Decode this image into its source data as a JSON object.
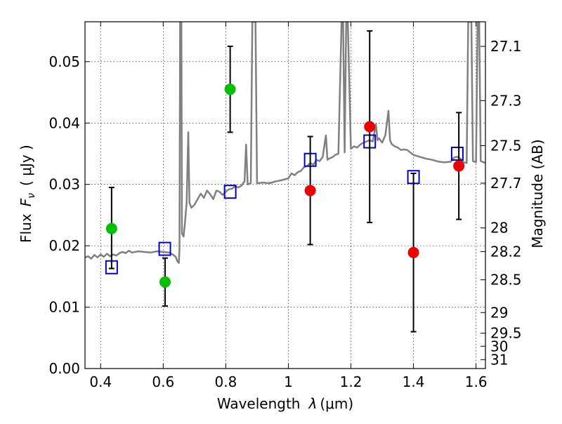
{
  "chart_data": {
    "type": "scatter",
    "title": "",
    "xlabel_prefix": "Wavelength",
    "xlabel_var": "λ",
    "xlabel_unit": "(μm)",
    "ylabel_prefix": "Flux",
    "ylabel_var": "F",
    "ylabel_sub": "ν",
    "ylabel_unit": "( μJy )",
    "y2label": "Magnitude (AB)",
    "xlim": [
      0.35,
      1.63
    ],
    "ylim": [
      0.0,
      0.0565
    ],
    "grid": true,
    "x_ticks": [
      {
        "v": 0.4,
        "label": "0.4"
      },
      {
        "v": 0.6,
        "label": "0.6"
      },
      {
        "v": 0.8,
        "label": "0.8"
      },
      {
        "v": 1.0,
        "label": "1"
      },
      {
        "v": 1.2,
        "label": "1.2"
      },
      {
        "v": 1.4,
        "label": "1.4"
      },
      {
        "v": 1.6,
        "label": "1.6"
      }
    ],
    "y_ticks": [
      {
        "v": 0.0,
        "label": "0.00"
      },
      {
        "v": 0.01,
        "label": "0.01"
      },
      {
        "v": 0.02,
        "label": "0.02"
      },
      {
        "v": 0.03,
        "label": "0.03"
      },
      {
        "v": 0.04,
        "label": "0.04"
      },
      {
        "v": 0.05,
        "label": "0.05"
      }
    ],
    "mag_ticks": [
      {
        "mag": 27.1,
        "label": "27.1"
      },
      {
        "mag": 27.3,
        "label": "27.3"
      },
      {
        "mag": 27.5,
        "label": "27.5"
      },
      {
        "mag": 27.7,
        "label": "27.7"
      },
      {
        "mag": 28.0,
        "label": "28"
      },
      {
        "mag": 28.2,
        "label": "28.2"
      },
      {
        "mag": 28.5,
        "label": "28.5"
      },
      {
        "mag": 29.0,
        "label": "29"
      },
      {
        "mag": 29.5,
        "label": "29.5"
      },
      {
        "mag": 30.0,
        "label": "30"
      },
      {
        "mag": 31.0,
        "label": "31"
      }
    ],
    "spectrum": {
      "name": "model spectrum",
      "color": "#808080",
      "points": [
        [
          0.35,
          0.0181
        ],
        [
          0.36,
          0.0183
        ],
        [
          0.37,
          0.0179
        ],
        [
          0.38,
          0.0185
        ],
        [
          0.39,
          0.0181
        ],
        [
          0.4,
          0.0186
        ],
        [
          0.41,
          0.0182
        ],
        [
          0.42,
          0.0187
        ],
        [
          0.43,
          0.0183
        ],
        [
          0.44,
          0.0186
        ],
        [
          0.45,
          0.0184
        ],
        [
          0.46,
          0.0188
        ],
        [
          0.47,
          0.019
        ],
        [
          0.48,
          0.0188
        ],
        [
          0.49,
          0.0192
        ],
        [
          0.5,
          0.0189
        ],
        [
          0.52,
          0.0191
        ],
        [
          0.54,
          0.019
        ],
        [
          0.56,
          0.0189
        ],
        [
          0.58,
          0.0191
        ],
        [
          0.6,
          0.019
        ],
        [
          0.62,
          0.0189
        ],
        [
          0.63,
          0.0186
        ],
        [
          0.64,
          0.0182
        ],
        [
          0.645,
          0.0175
        ],
        [
          0.65,
          0.0172
        ],
        [
          0.652,
          0.0195
        ],
        [
          0.654,
          0.0565
        ],
        [
          0.658,
          0.0565
        ],
        [
          0.66,
          0.022
        ],
        [
          0.665,
          0.0215
        ],
        [
          0.67,
          0.024
        ],
        [
          0.675,
          0.0271
        ],
        [
          0.68,
          0.0385
        ],
        [
          0.684,
          0.027
        ],
        [
          0.69,
          0.0262
        ],
        [
          0.7,
          0.0267
        ],
        [
          0.71,
          0.0276
        ],
        [
          0.72,
          0.0285
        ],
        [
          0.73,
          0.0278
        ],
        [
          0.74,
          0.029
        ],
        [
          0.75,
          0.0284
        ],
        [
          0.76,
          0.0276
        ],
        [
          0.77,
          0.029
        ],
        [
          0.78,
          0.0288
        ],
        [
          0.79,
          0.0283
        ],
        [
          0.8,
          0.0288
        ],
        [
          0.81,
          0.0292
        ],
        [
          0.82,
          0.0293
        ],
        [
          0.83,
          0.0297
        ],
        [
          0.84,
          0.0295
        ],
        [
          0.85,
          0.0298
        ],
        [
          0.86,
          0.0305
        ],
        [
          0.865,
          0.0365
        ],
        [
          0.87,
          0.03
        ],
        [
          0.88,
          0.0302
        ],
        [
          0.885,
          0.0565
        ],
        [
          0.895,
          0.0565
        ],
        [
          0.9,
          0.0302
        ],
        [
          0.92,
          0.0303
        ],
        [
          0.94,
          0.0302
        ],
        [
          0.96,
          0.0305
        ],
        [
          0.98,
          0.0307
        ],
        [
          1.0,
          0.031
        ],
        [
          1.01,
          0.0318
        ],
        [
          1.02,
          0.0315
        ],
        [
          1.03,
          0.032
        ],
        [
          1.04,
          0.0322
        ],
        [
          1.05,
          0.0328
        ],
        [
          1.06,
          0.033
        ],
        [
          1.07,
          0.0335
        ],
        [
          1.08,
          0.0332
        ],
        [
          1.09,
          0.034
        ],
        [
          1.1,
          0.0338
        ],
        [
          1.11,
          0.0345
        ],
        [
          1.12,
          0.038
        ],
        [
          1.125,
          0.034
        ],
        [
          1.13,
          0.0342
        ],
        [
          1.14,
          0.0344
        ],
        [
          1.15,
          0.0348
        ],
        [
          1.16,
          0.035
        ],
        [
          1.17,
          0.0565
        ],
        [
          1.175,
          0.0565
        ],
        [
          1.18,
          0.0352
        ],
        [
          1.185,
          0.0565
        ],
        [
          1.19,
          0.0565
        ],
        [
          1.2,
          0.0358
        ],
        [
          1.21,
          0.0362
        ],
        [
          1.22,
          0.036
        ],
        [
          1.23,
          0.0365
        ],
        [
          1.24,
          0.0368
        ],
        [
          1.25,
          0.037
        ],
        [
          1.26,
          0.0372
        ],
        [
          1.27,
          0.037
        ],
        [
          1.28,
          0.0398
        ],
        [
          1.285,
          0.0372
        ],
        [
          1.29,
          0.0375
        ],
        [
          1.3,
          0.0368
        ],
        [
          1.31,
          0.038
        ],
        [
          1.32,
          0.042
        ],
        [
          1.325,
          0.0372
        ],
        [
          1.33,
          0.0366
        ],
        [
          1.34,
          0.0362
        ],
        [
          1.35,
          0.036
        ],
        [
          1.36,
          0.0356
        ],
        [
          1.37,
          0.0357
        ],
        [
          1.38,
          0.0356
        ],
        [
          1.39,
          0.0352
        ],
        [
          1.4,
          0.0348
        ],
        [
          1.42,
          0.0345
        ],
        [
          1.44,
          0.0342
        ],
        [
          1.46,
          0.034
        ],
        [
          1.48,
          0.0337
        ],
        [
          1.5,
          0.0336
        ],
        [
          1.52,
          0.0337
        ],
        [
          1.53,
          0.0344
        ],
        [
          1.54,
          0.0345
        ],
        [
          1.55,
          0.0342
        ],
        [
          1.56,
          0.0336
        ],
        [
          1.57,
          0.0335
        ],
        [
          1.575,
          0.0565
        ],
        [
          1.585,
          0.0565
        ],
        [
          1.59,
          0.0338
        ],
        [
          1.6,
          0.0336
        ],
        [
          1.605,
          0.0565
        ],
        [
          1.61,
          0.0565
        ],
        [
          1.615,
          0.0338
        ],
        [
          1.63,
          0.0335
        ]
      ]
    },
    "series": [
      {
        "name": "model photometry",
        "marker": "open-square",
        "color": "#0000cc",
        "points": [
          {
            "x": 0.435,
            "y": 0.0165
          },
          {
            "x": 0.605,
            "y": 0.0195
          },
          {
            "x": 0.814,
            "y": 0.0288
          },
          {
            "x": 1.07,
            "y": 0.034
          },
          {
            "x": 1.26,
            "y": 0.037
          },
          {
            "x": 1.4,
            "y": 0.0312
          },
          {
            "x": 1.54,
            "y": 0.035
          }
        ]
      },
      {
        "name": "observed (green)",
        "marker": "filled-circle",
        "color": "#00c000",
        "points": [
          {
            "x": 0.435,
            "y": 0.0228,
            "err_lo": 0.0065,
            "err_hi": 0.0067
          },
          {
            "x": 0.606,
            "y": 0.0141,
            "err_lo": 0.0039,
            "err_hi": 0.0039
          },
          {
            "x": 0.814,
            "y": 0.0455,
            "err_lo": 0.007,
            "err_hi": 0.007
          }
        ]
      },
      {
        "name": "observed (red)",
        "marker": "filled-circle",
        "color": "#ee0000",
        "points": [
          {
            "x": 1.07,
            "y": 0.029,
            "err_lo": 0.0088,
            "err_hi": 0.0088
          },
          {
            "x": 1.26,
            "y": 0.0394,
            "err_lo": 0.0156,
            "err_hi": 0.0156
          },
          {
            "x": 1.4,
            "y": 0.0189,
            "err_lo": 0.0129,
            "err_hi": 0.0129
          },
          {
            "x": 1.545,
            "y": 0.033,
            "err_lo": 0.0087,
            "err_hi": 0.0087
          }
        ]
      }
    ]
  }
}
